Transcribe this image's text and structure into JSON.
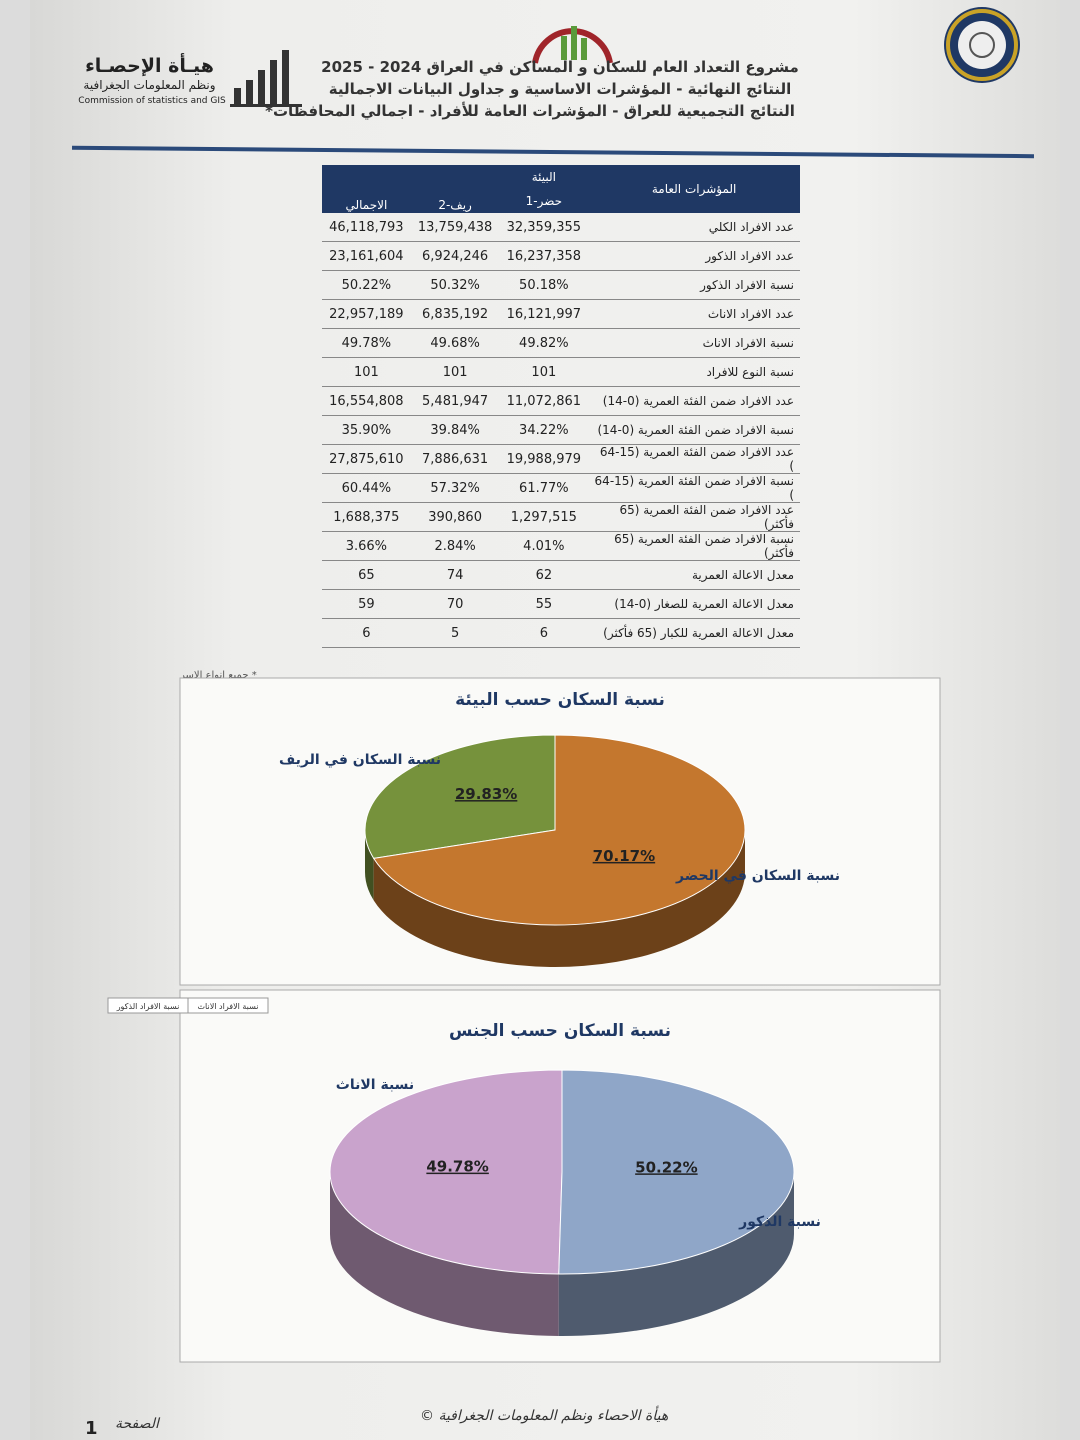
{
  "header": {
    "org_name": "هيـأة الإحصـاء",
    "org_subname": "ونظم المعلومات الجغرافية",
    "org_english": "Commission of statistics and GIS",
    "title_lines": [
      "مشروع التعداد العام للسكان و المساكن في العراق 2024 - 2025",
      "النتائج النهائية - المؤشرات الاساسية و جداول البيانات الاجمالية",
      "النتائج التجميعية للعراق - المؤشرات العامة للأفراد - اجمالي المحافظات*"
    ]
  },
  "table": {
    "headers": {
      "indicator": "المؤشرات العامة",
      "environment": "البيئة",
      "urban": "1-حضر",
      "rural": "2-ريف",
      "total": "الاجمالي"
    },
    "rows": [
      [
        "عدد الافراد الكلي",
        "32,359,355",
        "13,759,438",
        "46,118,793"
      ],
      [
        "عدد الافراد الذكور",
        "16,237,358",
        "6,924,246",
        "23,161,604"
      ],
      [
        "نسبة الافراد الذكور",
        "50.18%",
        "50.32%",
        "50.22%"
      ],
      [
        "عدد الافراد الاناث",
        "16,121,997",
        "6,835,192",
        "22,957,189"
      ],
      [
        "نسبة الافراد الاناث",
        "49.82%",
        "49.68%",
        "49.78%"
      ],
      [
        "نسبة النوع للافراد",
        "101",
        "101",
        "101"
      ],
      [
        "عدد الافراد ضمن الفئة العمرية (0-14)",
        "11,072,861",
        "5,481,947",
        "16,554,808"
      ],
      [
        "نسبة الافراد ضمن الفئة العمرية (0-14)",
        "34.22%",
        "39.84%",
        "35.90%"
      ],
      [
        "عدد الافراد ضمن الفئة العمرية (15-64 )",
        "19,988,979",
        "7,886,631",
        "27,875,610"
      ],
      [
        "نسبة الافراد ضمن الفئة العمرية (15-64 )",
        "61.77%",
        "57.32%",
        "60.44%"
      ],
      [
        "عدد الافراد ضمن الفئة العمرية (65 فأكثر)",
        "1,297,515",
        "390,860",
        "1,688,375"
      ],
      [
        "نسبة الافراد ضمن الفئة العمرية (65 فأكثر)",
        "4.01%",
        "2.84%",
        "3.66%"
      ],
      [
        "معدل الاعالة العمرية",
        "62",
        "74",
        "65"
      ],
      [
        "معدل الاعالة العمرية للصغار (0-14)",
        "55",
        "70",
        "59"
      ],
      [
        "معدل الاعالة العمرية للكبار (65 فأكثر)",
        "6",
        "5",
        "6"
      ]
    ],
    "footnote": "* جميع انواع الاسر"
  },
  "chart_data": [
    {
      "type": "pie",
      "title": "نسبة السكان حسب البيئة",
      "categories": [
        "نسبة السكان في الريف",
        "نسبة السكان في الحضر"
      ],
      "values": [
        29.83,
        70.17
      ],
      "value_labels": [
        "29.83%",
        "70.17%"
      ],
      "colors": [
        "#76923c",
        "#c4772e"
      ]
    },
    {
      "type": "pie",
      "title": "نسبة السكان حسب الجنس",
      "categories": [
        "نسبة الاناث",
        "نسبة الذكور"
      ],
      "values": [
        49.78,
        50.22
      ],
      "value_labels": [
        "49.78%",
        "50.22%"
      ],
      "colors": [
        "#c9a3cc",
        "#8fa6c8"
      ],
      "legend": [
        "نسبة الافراد الاناث",
        "نسبة الافراد الذكور"
      ]
    }
  ],
  "footer": {
    "text": "هيأة الاحصاء ونظم المعلومات الجغرافية ©",
    "page_label": "الصفحة",
    "page_number": 1
  }
}
